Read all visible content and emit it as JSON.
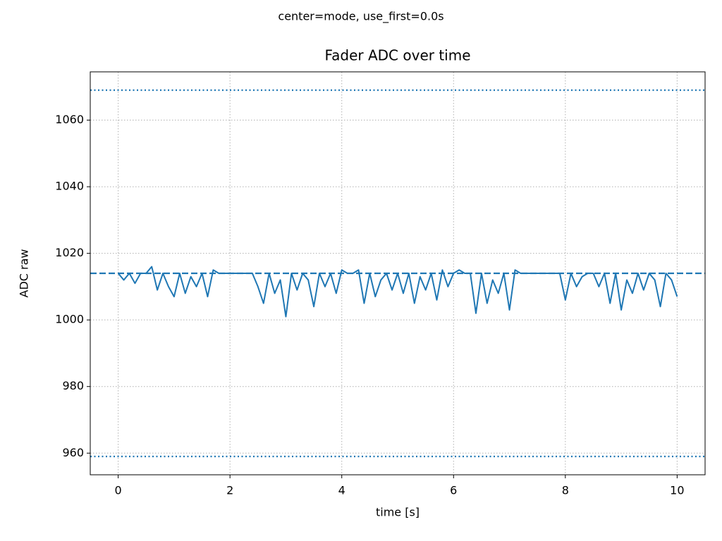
{
  "chart_data": {
    "type": "line",
    "suptitle": "center=mode, use_first=0.0s",
    "title": "Fader ADC over time",
    "xlabel": "time [s]",
    "ylabel": "ADC raw",
    "color": "#1f77b4",
    "grid": true,
    "xlim": [
      -0.5,
      10.5
    ],
    "xticks": [
      0,
      2,
      4,
      6,
      8,
      10
    ],
    "ylim": [
      953.5,
      1074.5
    ],
    "yticks": [
      960,
      980,
      1000,
      1020,
      1040,
      1060
    ],
    "hlines": [
      {
        "value": 1014,
        "style": "dashed"
      },
      {
        "value": 1069,
        "style": "dotted"
      },
      {
        "value": 959,
        "style": "dotted"
      }
    ],
    "x": [
      0,
      0.1,
      0.2,
      0.3,
      0.4,
      0.5,
      0.6,
      0.7,
      0.8,
      0.9,
      1,
      1.1,
      1.2,
      1.3,
      1.4,
      1.5,
      1.6,
      1.7,
      1.8,
      1.9,
      2,
      2.1,
      2.2,
      2.3,
      2.4,
      2.5,
      2.6,
      2.7,
      2.8,
      2.9,
      3,
      3.1,
      3.2,
      3.3,
      3.4,
      3.5,
      3.6,
      3.7,
      3.8,
      3.9,
      4,
      4.1,
      4.2,
      4.3,
      4.4,
      4.5,
      4.6,
      4.7,
      4.8,
      4.9,
      5,
      5.1,
      5.2,
      5.3,
      5.4,
      5.5,
      5.6,
      5.7,
      5.8,
      5.9,
      6,
      6.1,
      6.2,
      6.3,
      6.4,
      6.5,
      6.6,
      6.7,
      6.8,
      6.9,
      7,
      7.1,
      7.2,
      7.3,
      7.4,
      7.5,
      7.6,
      7.7,
      7.8,
      7.9,
      8,
      8.1,
      8.2,
      8.3,
      8.4,
      8.5,
      8.6,
      8.7,
      8.8,
      8.9,
      9,
      9.1,
      9.2,
      9.3,
      9.4,
      9.5,
      9.6,
      9.7,
      9.8,
      9.9,
      10
    ],
    "values": [
      1014,
      1012,
      1014,
      1011,
      1014,
      1014,
      1016,
      1009,
      1014,
      1010,
      1007,
      1014,
      1008,
      1013,
      1010,
      1014,
      1007,
      1015,
      1014,
      1014,
      1014,
      1014,
      1014,
      1014,
      1014,
      1010,
      1005,
      1014,
      1008,
      1012,
      1001,
      1014,
      1009,
      1014,
      1012,
      1004,
      1014,
      1010,
      1014,
      1008,
      1015,
      1014,
      1014,
      1015,
      1005,
      1014,
      1007,
      1012,
      1014,
      1009,
      1014,
      1008,
      1014,
      1005,
      1013,
      1009,
      1014,
      1006,
      1015,
      1010,
      1014,
      1015,
      1014,
      1014,
      1002,
      1014,
      1005,
      1012,
      1008,
      1014,
      1003,
      1015,
      1014,
      1014,
      1014,
      1014,
      1014,
      1014,
      1014,
      1014,
      1006,
      1014,
      1010,
      1013,
      1014,
      1014,
      1010,
      1014,
      1005,
      1014,
      1003,
      1012,
      1008,
      1014,
      1009,
      1014,
      1012,
      1004,
      1014,
      1012,
      1007
    ]
  }
}
